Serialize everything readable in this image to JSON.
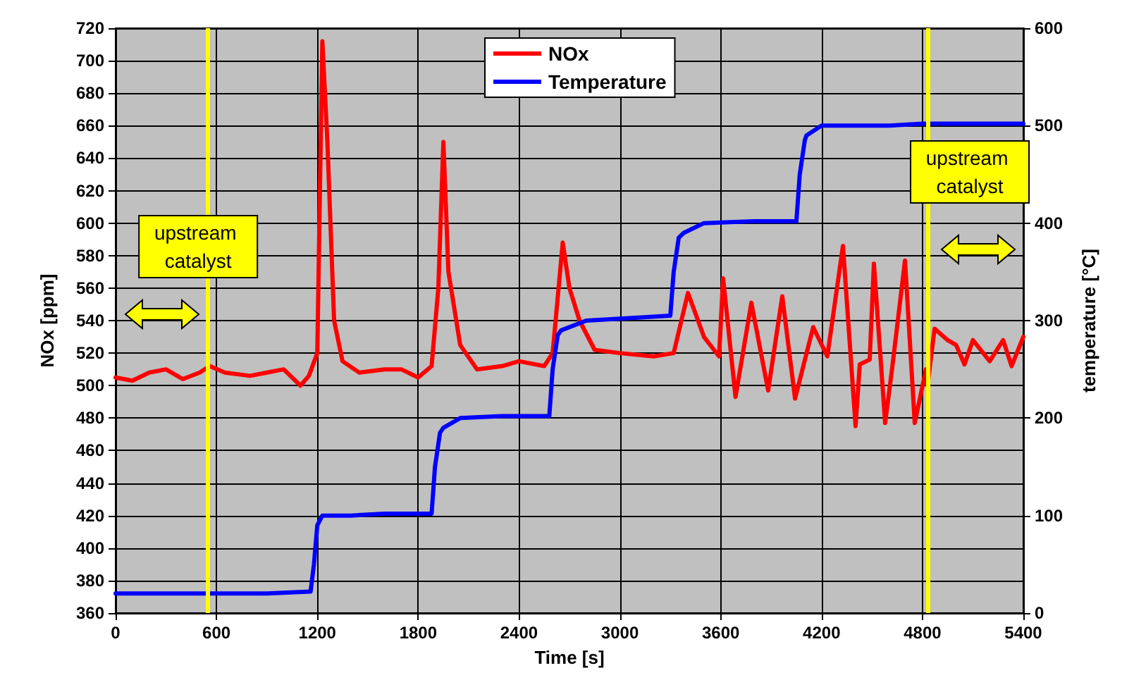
{
  "chart_data": {
    "type": "line",
    "xlabel": "Time [s]",
    "ylabel": "NOx [ppm]",
    "y2label": "temperature [°C]",
    "xlim": [
      0,
      5400
    ],
    "xticks": [
      0,
      600,
      1200,
      1800,
      2400,
      3000,
      3600,
      4200,
      4800,
      5400
    ],
    "ylim": [
      360,
      720
    ],
    "yticks": [
      360,
      380,
      400,
      420,
      440,
      460,
      480,
      500,
      520,
      540,
      560,
      580,
      600,
      620,
      640,
      660,
      680,
      700,
      720
    ],
    "y2lim": [
      0,
      600
    ],
    "y2ticks": [
      0,
      100,
      200,
      300,
      400,
      500,
      600
    ],
    "grid": true,
    "legend": "top",
    "marker": "none",
    "line_style": "solid",
    "series": [
      {
        "name": "NOx",
        "color": "#ff0000",
        "x": [
          0,
          100,
          200,
          300,
          400,
          500,
          560,
          650,
          800,
          900,
          1000,
          1100,
          1150,
          1200,
          1230,
          1260,
          1300,
          1350,
          1450,
          1600,
          1700,
          1800,
          1880,
          1920,
          1950,
          1980,
          2050,
          2150,
          2300,
          2400,
          2550,
          2600,
          2660,
          2700,
          2760,
          2850,
          3000,
          3200,
          3320,
          3405,
          3500,
          3590,
          3614,
          3688,
          3782,
          3882,
          3966,
          4042,
          4150,
          4234,
          4327,
          4402,
          4427,
          4486,
          4511,
          4578,
          4620,
          4696,
          4754,
          4821,
          4830,
          4872,
          4950,
          5000,
          5050,
          5100,
          5200,
          5280,
          5330,
          5400
        ],
        "values": [
          505,
          503,
          508,
          510,
          504,
          508,
          512,
          508,
          506,
          508,
          510,
          500,
          506,
          520,
          712,
          650,
          540,
          515,
          508,
          510,
          510,
          505,
          512,
          560,
          650,
          570,
          525,
          510,
          512,
          515,
          512,
          520,
          588,
          560,
          540,
          522,
          520,
          518,
          520,
          557,
          530,
          518,
          566,
          493,
          551,
          497,
          555,
          492,
          536,
          518,
          586,
          475,
          513,
          516,
          575,
          477,
          511,
          577,
          477,
          510,
          500,
          535,
          528,
          525,
          513,
          528,
          515,
          528,
          512,
          530
        ]
      },
      {
        "name": "Temperature",
        "color": "#0000ff",
        "axis": "y2",
        "x": [
          0,
          300,
          600,
          900,
          1160,
          1180,
          1200,
          1230,
          1400,
          1600,
          1880,
          1900,
          1930,
          1950,
          2050,
          2300,
          2580,
          2600,
          2630,
          2650,
          2800,
          3000,
          3300,
          3320,
          3350,
          3380,
          3500,
          3800,
          4050,
          4070,
          4100,
          4110,
          4200,
          4600,
          4800,
          5100,
          5400
        ],
        "values": [
          20,
          20,
          20,
          20,
          22,
          50,
          90,
          100,
          100,
          102,
          102,
          150,
          185,
          190,
          200,
          202,
          202,
          250,
          285,
          290,
          300,
          302,
          305,
          350,
          385,
          390,
          400,
          402,
          402,
          450,
          485,
          490,
          500,
          500,
          502,
          502,
          502
        ]
      }
    ],
    "ref_lines": [
      {
        "axis": "x",
        "value": 550,
        "color": "#ffff00"
      },
      {
        "axis": "x",
        "value": 4830,
        "color": "#ffff00"
      }
    ],
    "annotations": [
      "upstream catalyst",
      "upstream catalyst"
    ]
  }
}
